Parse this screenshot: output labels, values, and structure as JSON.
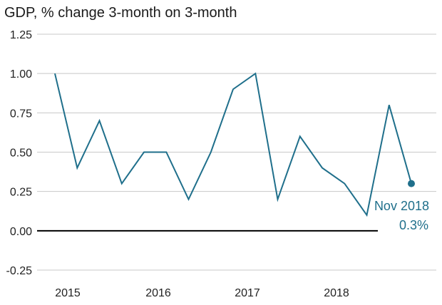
{
  "chart_data": {
    "type": "line",
    "title": "GDP, % change 3-month on 3-month",
    "xlabel": "",
    "ylabel": "",
    "ylim": [
      -0.25,
      1.25
    ],
    "y_ticks": [
      -0.25,
      0.0,
      0.25,
      0.5,
      0.75,
      1.0,
      1.25
    ],
    "y_tick_labels": [
      "-0.25",
      "0.00",
      "0.25",
      "0.50",
      "0.75",
      "1.00",
      "1.25"
    ],
    "x_tick_labels": [
      "2015",
      "2016",
      "2017",
      "2018"
    ],
    "grid": true,
    "legend": "none",
    "series": [
      {
        "color": "#1f6f8b",
        "values": [
          1.0,
          0.4,
          0.7,
          0.3,
          0.5,
          0.5,
          0.2,
          0.5,
          0.9,
          1.0,
          0.2,
          0.6,
          0.4,
          0.3,
          0.1,
          0.8,
          0.3
        ]
      }
    ],
    "annotation": {
      "label": "Nov 2018",
      "value_label": "0.3%",
      "color": "#1f6f8b"
    },
    "colors": {
      "line": "#1f6f8b",
      "grid": "#c8c8c8",
      "zero_line": "#000000",
      "text": "#222222"
    }
  }
}
